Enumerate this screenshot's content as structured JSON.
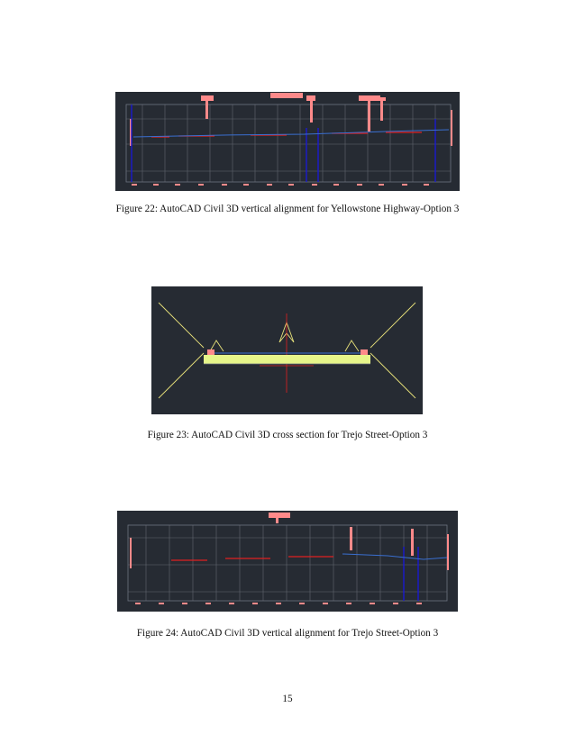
{
  "figures": [
    {
      "caption": "Figure 22: AutoCAD Civil 3D vertical alignment for Yellowstone Highway-Option 3",
      "image_description": "AutoCAD Civil 3D profile view (vertical alignment)"
    },
    {
      "caption": "Figure 23: AutoCAD Civil 3D cross section for Trejo Street-Option 3",
      "image_description": "AutoCAD Civil 3D roadway cross section"
    },
    {
      "caption": "Figure 24: AutoCAD Civil 3D vertical alignment for Trejo Street-Option 3",
      "image_description": "AutoCAD Civil 3D profile view (vertical alignment)"
    }
  ],
  "page_number": "15",
  "colors": {
    "cad_background": "#262b33",
    "grid": "#8a8f98",
    "annotation": "#ff8a8a",
    "profile_red": "#e02020",
    "profile_blue": "#3a6fd0",
    "ground_blue": "#1a1ad0",
    "roadway_fill": "#e6f58a",
    "guide_yellow": "#e8e27a"
  }
}
